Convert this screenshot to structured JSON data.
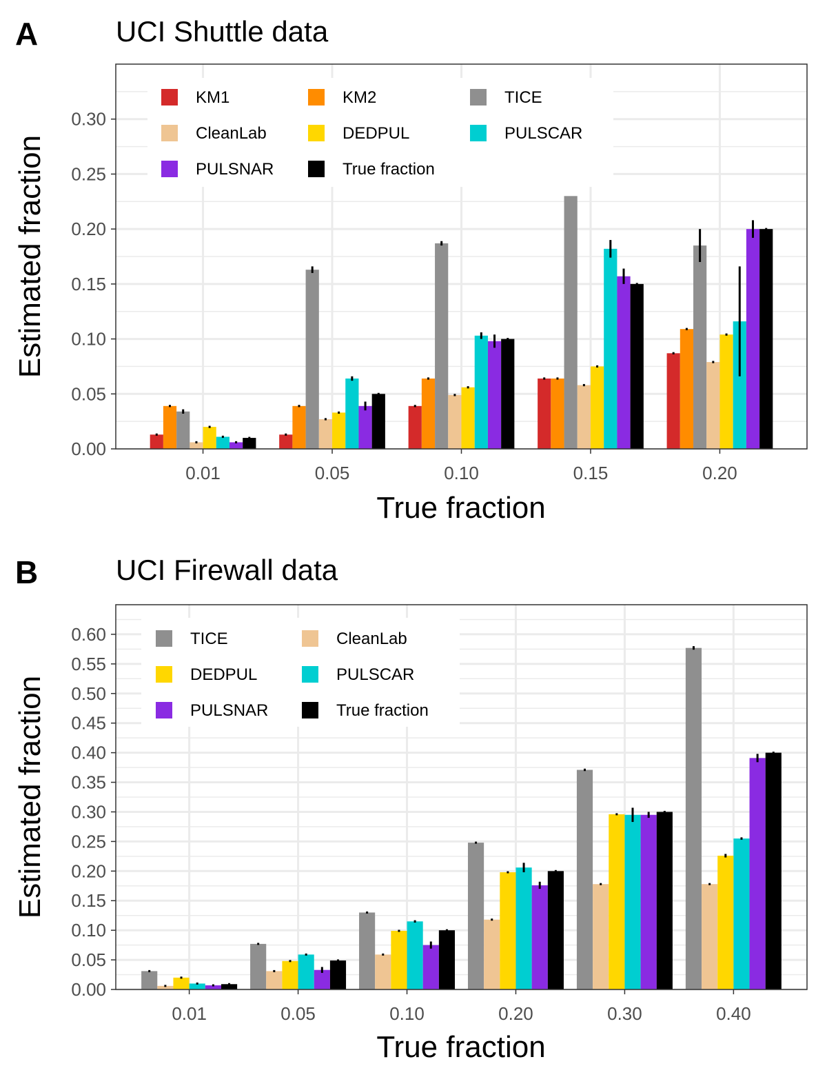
{
  "colors": {
    "KM1": "#d42a2a",
    "KM2": "#ff8c00",
    "TICE": "#8f8f8f",
    "CleanLab": "#efc593",
    "DEDPUL": "#ffd700",
    "PULSCAR": "#00ced1",
    "PULSNAR": "#8a2be2",
    "True fraction": "#000000"
  },
  "chart_data": [
    {
      "type": "bar",
      "panel_letter": "A",
      "title": "UCI Shuttle data",
      "xlabel": "True fraction",
      "ylabel": "Estimated fraction",
      "ylim": [
        0,
        0.35
      ],
      "yticks": [
        "0.00",
        "0.05",
        "0.10",
        "0.15",
        "0.20",
        "0.25",
        "0.30"
      ],
      "legend_position": "top-left",
      "categories": [
        "0.01",
        "0.05",
        "0.10",
        "0.15",
        "0.20"
      ],
      "series": [
        {
          "name": "KM1",
          "values": [
            0.013,
            0.013,
            0.039,
            0.064,
            0.087
          ],
          "errors": [
            0.001,
            0.001,
            0.001,
            0.001,
            0.001
          ]
        },
        {
          "name": "KM2",
          "values": [
            0.039,
            0.039,
            0.064,
            0.064,
            0.109
          ],
          "errors": [
            0.001,
            0.001,
            0.001,
            0.001,
            0.001
          ]
        },
        {
          "name": "TICE",
          "values": [
            0.034,
            0.163,
            0.187,
            0.23,
            0.185
          ],
          "errors": [
            0.002,
            0.003,
            0.002,
            0,
            0.015
          ]
        },
        {
          "name": "CleanLab",
          "values": [
            0.006,
            0.027,
            0.049,
            0.058,
            0.079
          ],
          "errors": [
            0.001,
            0.001,
            0.001,
            0.001,
            0.001
          ]
        },
        {
          "name": "DEDPUL",
          "values": [
            0.02,
            0.033,
            0.056,
            0.075,
            0.104
          ],
          "errors": [
            0.001,
            0.001,
            0.001,
            0.001,
            0.001
          ]
        },
        {
          "name": "PULSCAR",
          "values": [
            0.011,
            0.064,
            0.103,
            0.182,
            0.116
          ],
          "errors": [
            0.001,
            0.002,
            0.003,
            0.008,
            0.05
          ]
        },
        {
          "name": "PULSNAR",
          "values": [
            0.006,
            0.039,
            0.098,
            0.157,
            0.2
          ],
          "errors": [
            0.001,
            0.004,
            0.006,
            0.007,
            0.008
          ]
        },
        {
          "name": "True fraction",
          "values": [
            0.01,
            0.05,
            0.1,
            0.15,
            0.2
          ],
          "errors": [
            0.0005,
            0.0005,
            0.0005,
            0.0005,
            0.0005
          ]
        }
      ],
      "legend": [
        "KM1",
        "KM2",
        "TICE",
        "CleanLab",
        "DEDPUL",
        "PULSCAR",
        "PULSNAR",
        "True fraction"
      ]
    },
    {
      "type": "bar",
      "panel_letter": "B",
      "title": "UCI Firewall data",
      "xlabel": "True fraction",
      "ylabel": "Estimated fraction",
      "ylim": [
        0,
        0.65
      ],
      "yticks": [
        "0.00",
        "0.05",
        "0.10",
        "0.15",
        "0.20",
        "0.25",
        "0.30",
        "0.35",
        "0.40",
        "0.45",
        "0.50",
        "0.55",
        "0.60"
      ],
      "legend_position": "top-left",
      "categories": [
        "0.01",
        "0.05",
        "0.10",
        "0.20",
        "0.30",
        "0.40"
      ],
      "series": [
        {
          "name": "TICE",
          "values": [
            0.031,
            0.077,
            0.13,
            0.248,
            0.371,
            0.577
          ],
          "errors": [
            0.001,
            0.001,
            0.001,
            0.001,
            0.002,
            0.003
          ]
        },
        {
          "name": "CleanLab",
          "values": [
            0.006,
            0.031,
            0.059,
            0.118,
            0.178,
            0.178
          ],
          "errors": [
            0.001,
            0.001,
            0.001,
            0.001,
            0.001,
            0.001
          ]
        },
        {
          "name": "DEDPUL",
          "values": [
            0.02,
            0.048,
            0.099,
            0.198,
            0.296,
            0.226
          ],
          "errors": [
            0.001,
            0.001,
            0.001,
            0.001,
            0.001,
            0.003
          ]
        },
        {
          "name": "PULSCAR",
          "values": [
            0.01,
            0.059,
            0.115,
            0.206,
            0.295,
            0.255
          ],
          "errors": [
            0.001,
            0.001,
            0.002,
            0.008,
            0.012,
            0.002
          ]
        },
        {
          "name": "PULSNAR",
          "values": [
            0.007,
            0.033,
            0.075,
            0.176,
            0.295,
            0.391
          ],
          "errors": [
            0.001,
            0.005,
            0.006,
            0.006,
            0.005,
            0.007
          ]
        },
        {
          "name": "True fraction",
          "values": [
            0.009,
            0.049,
            0.1,
            0.2,
            0.3,
            0.4
          ],
          "errors": [
            0.001,
            0.001,
            0.0005,
            0.0005,
            0.0005,
            0.0005
          ]
        }
      ],
      "legend": [
        "TICE",
        "CleanLab",
        "DEDPUL",
        "PULSCAR",
        "PULSNAR",
        "True fraction"
      ]
    }
  ]
}
